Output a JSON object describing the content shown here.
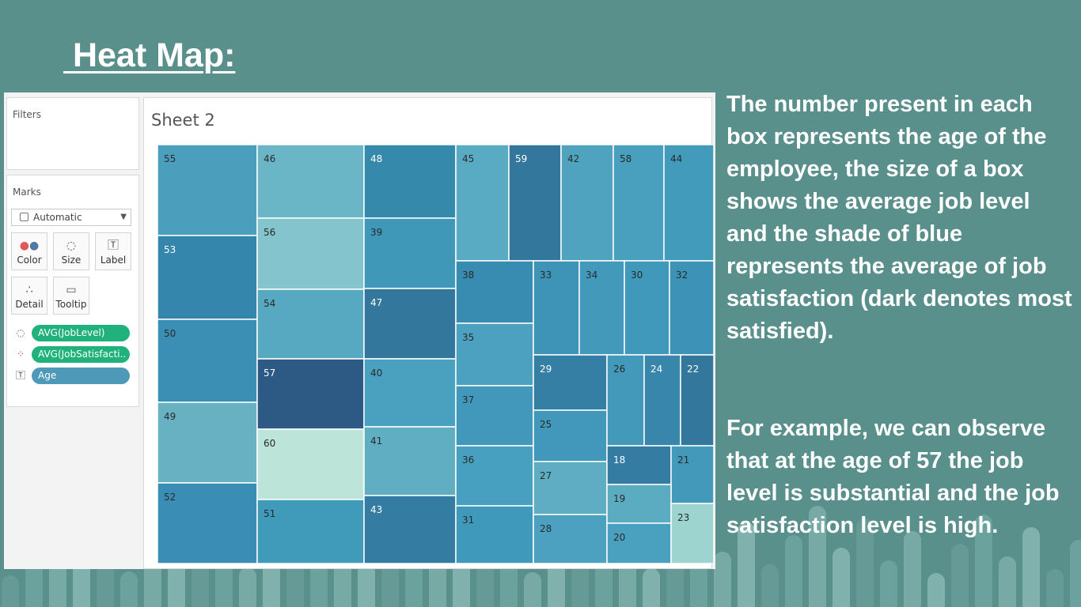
{
  "slide": {
    "title": " Heat Map:",
    "description_1": "The number present in each box represents the age of the employee, the size of a box shows the average job level and the shade of blue represents the average of job satisfaction (dark denotes most satisfied).",
    "description_2": "For example, we can observe that at the age of 57 the job level is substantial and the job satisfaction level is high."
  },
  "tableau": {
    "filters_title": "Filters",
    "marks_title": "Marks",
    "mark_type": "Automatic",
    "buttons": {
      "color": "Color",
      "size": "Size",
      "label": "Label",
      "detail": "Detail",
      "tooltip": "Tooltip"
    },
    "pills": {
      "size_field": "AVG(JobLevel)",
      "color_field": "AVG(JobSatisfacti..",
      "label_field": "Age"
    },
    "sheet_title": "Sheet 2"
  },
  "colors": {
    "background": "#5a908c",
    "pill_green": "#21b17d",
    "pill_blue": "#4f99b8"
  },
  "chart_data": {
    "type": "heatmap",
    "subtype": "treemap",
    "title": "Sheet 2",
    "size_measure": "AVG(JobLevel)",
    "color_measure": "AVG(JobSatisfacti..",
    "label_field": "Age",
    "color_scale": "light-to-dark blue (dark = most satisfied)",
    "cells": [
      {
        "age": 55,
        "color": "#4b9fbc"
      },
      {
        "age": 53,
        "color": "#3586ac"
      },
      {
        "age": 50,
        "color": "#3b8fb4"
      },
      {
        "age": 49,
        "color": "#67b1c2"
      },
      {
        "age": 52,
        "color": "#3a8db4"
      },
      {
        "age": 46,
        "color": "#6bb6c6"
      },
      {
        "age": 56,
        "color": "#84c4cc"
      },
      {
        "age": 54,
        "color": "#57a8c1"
      },
      {
        "age": 57,
        "color": "#2d5985"
      },
      {
        "age": 60,
        "color": "#bde4d9"
      },
      {
        "age": 51,
        "color": "#409bba"
      },
      {
        "age": 48,
        "color": "#3589ab"
      },
      {
        "age": 39,
        "color": "#3f98b8"
      },
      {
        "age": 47,
        "color": "#34779d"
      },
      {
        "age": 40,
        "color": "#4aa0bf"
      },
      {
        "age": 41,
        "color": "#60aec2"
      },
      {
        "age": 43,
        "color": "#357ca3"
      },
      {
        "age": 45,
        "color": "#59aac3"
      },
      {
        "age": 59,
        "color": "#34779d"
      },
      {
        "age": 42,
        "color": "#50a3bf"
      },
      {
        "age": 58,
        "color": "#489fbe"
      },
      {
        "age": 44,
        "color": "#429bbb"
      },
      {
        "age": 38,
        "color": "#388cb2"
      },
      {
        "age": 35,
        "color": "#4ba1bf"
      },
      {
        "age": 37,
        "color": "#4198bb"
      },
      {
        "age": 36,
        "color": "#47a0bf"
      },
      {
        "age": 31,
        "color": "#3f99ba"
      },
      {
        "age": 33,
        "color": "#3e94b7"
      },
      {
        "age": 34,
        "color": "#4299ba"
      },
      {
        "age": 30,
        "color": "#4099ba"
      },
      {
        "age": 32,
        "color": "#3c93b7"
      },
      {
        "age": 29,
        "color": "#357ea4"
      },
      {
        "age": 25,
        "color": "#4298ba"
      },
      {
        "age": 27,
        "color": "#5eadc2"
      },
      {
        "age": 28,
        "color": "#4ba1bf"
      },
      {
        "age": 26,
        "color": "#4299ba"
      },
      {
        "age": 24,
        "color": "#3886ac"
      },
      {
        "age": 22,
        "color": "#34779d"
      },
      {
        "age": 18,
        "color": "#357ca3"
      },
      {
        "age": 21,
        "color": "#4299ba"
      },
      {
        "age": 19,
        "color": "#5babc1"
      },
      {
        "age": 20,
        "color": "#4aa0bf"
      },
      {
        "age": 23,
        "color": "#9dd4cf"
      }
    ]
  }
}
